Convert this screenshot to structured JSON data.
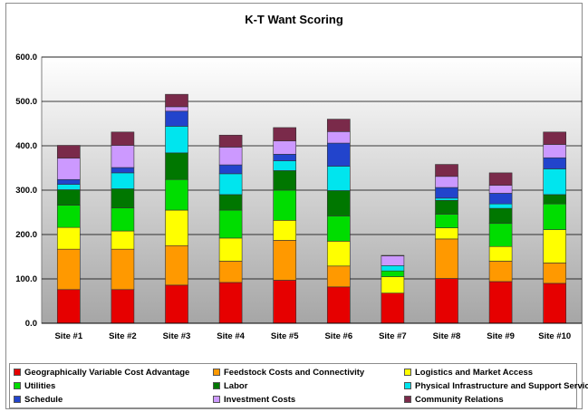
{
  "chart_data": {
    "type": "bar",
    "stacked": true,
    "title": "K-T Want Scoring",
    "xlabel": "",
    "ylabel": "",
    "ylim": [
      0,
      600
    ],
    "yticks": [
      "0.0",
      "100.0",
      "200.0",
      "300.0",
      "400.0",
      "500.0",
      "600.0"
    ],
    "grid": true,
    "legend_position": "bottom",
    "categories": [
      "Site #1",
      "Site #2",
      "Site #3",
      "Site #4",
      "Site #5",
      "Site #6",
      "Site #7",
      "Site #8",
      "Site #9",
      "Site #10"
    ],
    "series": [
      {
        "name": "Geographically Variable Cost Advantage",
        "color": "#e60000",
        "values": [
          76,
          76,
          86,
          92,
          97,
          82,
          68,
          101,
          94,
          90
        ]
      },
      {
        "name": "Feedstock Costs and Connectivity",
        "color": "#ff9900",
        "values": [
          91,
          91,
          89,
          48,
          90,
          47,
          0,
          89,
          46,
          46
        ]
      },
      {
        "name": "Logistics and Market Access",
        "color": "#ffff00",
        "values": [
          49,
          41,
          80,
          52,
          45,
          56,
          37,
          25,
          33,
          75
        ]
      },
      {
        "name": "Utilities",
        "color": "#00dd00",
        "values": [
          50,
          52,
          69,
          63,
          68,
          57,
          13,
          31,
          52,
          58
        ]
      },
      {
        "name": "Labor",
        "color": "#007700",
        "values": [
          35,
          43,
          60,
          35,
          44,
          57,
          0,
          31,
          34,
          21
        ]
      },
      {
        "name": "Physical Infrastructure and Support Services",
        "color": "#00e5ee",
        "values": [
          12,
          36,
          60,
          47,
          22,
          55,
          12,
          5,
          10,
          58
        ]
      },
      {
        "name": "Schedule",
        "color": "#2244cc",
        "values": [
          11,
          12,
          34,
          20,
          15,
          52,
          0,
          24,
          24,
          25
        ]
      },
      {
        "name": "Investment Costs",
        "color": "#cc99ff",
        "values": [
          48,
          50,
          10,
          40,
          30,
          26,
          22,
          25,
          18,
          30
        ]
      },
      {
        "name": "Community Relations",
        "color": "#7a2a4a",
        "values": [
          29,
          30,
          28,
          27,
          30,
          28,
          1,
          27,
          28,
          28
        ]
      }
    ]
  }
}
